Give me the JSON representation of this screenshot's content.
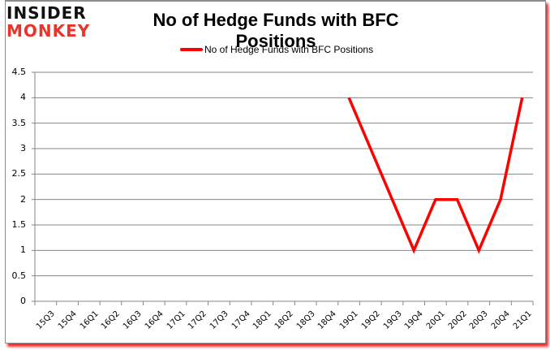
{
  "logo": {
    "line1": "INSIDER",
    "line2": "MONKEY"
  },
  "title": "No of Hedge Funds with BFC Positions",
  "legend": {
    "label": "No of Hedge Funds with BFC Positions",
    "color": "#ff0000"
  },
  "y_ticks": [
    "0",
    "0.5",
    "1",
    "1.5",
    "2",
    "2.5",
    "3",
    "3.5",
    "4",
    "4.5"
  ],
  "x_ticks": [
    "15Q3",
    "15Q4",
    "16Q1",
    "16Q2",
    "16Q3",
    "16Q4",
    "17Q1",
    "17Q2",
    "17Q3",
    "17Q4",
    "18Q1",
    "18Q2",
    "18Q3",
    "18Q4",
    "19Q1",
    "19Q2",
    "19Q3",
    "19Q4",
    "20Q1",
    "20Q2",
    "20Q3",
    "20Q4",
    "21Q1"
  ],
  "chart_data": {
    "type": "line",
    "title": "No of Hedge Funds with BFC Positions",
    "xlabel": "",
    "ylabel": "",
    "ylim": [
      0,
      4.5
    ],
    "grid": true,
    "legend_position": "top",
    "categories": [
      "15Q3",
      "15Q4",
      "16Q1",
      "16Q2",
      "16Q3",
      "16Q4",
      "17Q1",
      "17Q2",
      "17Q3",
      "17Q4",
      "18Q1",
      "18Q2",
      "18Q3",
      "18Q4",
      "19Q1",
      "19Q2",
      "19Q3",
      "19Q4",
      "20Q1",
      "20Q2",
      "20Q3",
      "20Q4",
      "21Q1"
    ],
    "series": [
      {
        "name": "No of Hedge Funds with BFC Positions",
        "color": "#ff0000",
        "values": [
          null,
          null,
          null,
          null,
          null,
          null,
          null,
          null,
          null,
          null,
          null,
          null,
          null,
          null,
          4,
          3,
          2,
          1,
          2,
          2,
          1,
          2,
          4
        ]
      }
    ]
  }
}
